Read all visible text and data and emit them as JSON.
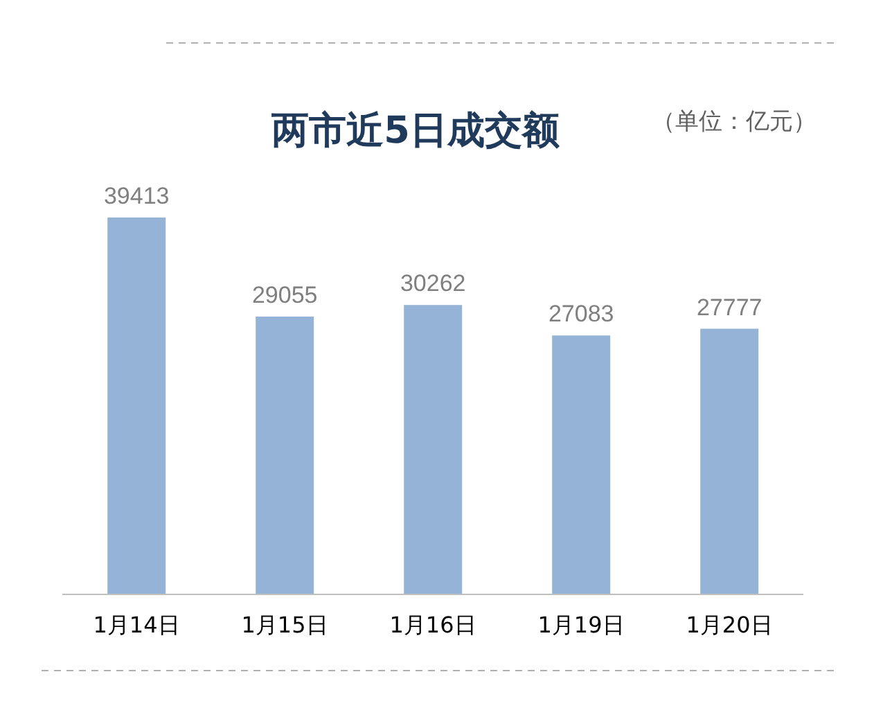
{
  "chart_data": {
    "type": "bar",
    "title": "两市近5日成交额",
    "annotations": [
      "（单位：亿元）"
    ],
    "categories": [
      "1月14日",
      "1月15日",
      "1月16日",
      "1月19日",
      "1月20日"
    ],
    "values": [
      39413,
      29055,
      30262,
      27083,
      27777
    ],
    "color": "#95b3d7",
    "data_labels": true
  }
}
